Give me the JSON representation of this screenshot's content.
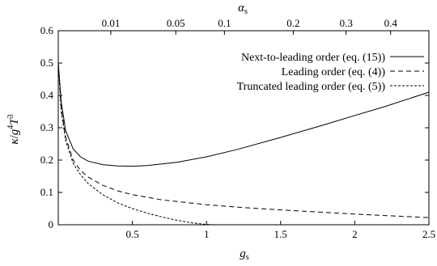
{
  "chart_data": {
    "type": "line",
    "xlabel": "g_s",
    "xlabel_main": "g",
    "xlabel_sub": "s",
    "ylabel": "κ/g⁴T³",
    "ylabel_parts": {
      "k": "κ",
      "slash": "/",
      "g": "g",
      "exp4": "4",
      "T": "T",
      "exp3": "3"
    },
    "top_axis_label": "α_s",
    "top_axis_main": "α",
    "top_axis_sub": "s",
    "xlim": [
      0,
      2.5
    ],
    "ylim": [
      0,
      0.6
    ],
    "x_ticks": [
      0.5,
      1,
      1.5,
      2,
      2.5
    ],
    "x_tick_labels": [
      "0.5",
      "1",
      "1.5",
      "2",
      "2.5"
    ],
    "y_ticks": [
      0,
      0.1,
      0.2,
      0.3,
      0.4,
      0.5,
      0.6
    ],
    "y_tick_labels": [
      "0",
      "0.1",
      "0.2",
      "0.3",
      "0.4",
      "0.5",
      "0.6"
    ],
    "top_ticks": [
      0.01,
      0.05,
      0.1,
      0.2,
      0.3,
      0.4
    ],
    "top_tick_labels": [
      "0.01",
      "0.05",
      "0.1",
      "0.2",
      "0.3",
      "0.4"
    ],
    "legend_position": "top-right",
    "series": [
      {
        "name": "Next-to-leading order (eq. (15))",
        "style": "solid",
        "x": [
          0.0,
          0.02,
          0.05,
          0.1,
          0.15,
          0.2,
          0.3,
          0.4,
          0.5,
          0.6,
          0.8,
          1.0,
          1.2,
          1.5,
          1.8,
          2.0,
          2.2,
          2.5
        ],
        "y": [
          0.5,
          0.38,
          0.29,
          0.235,
          0.21,
          0.197,
          0.186,
          0.182,
          0.181,
          0.183,
          0.193,
          0.21,
          0.232,
          0.27,
          0.31,
          0.338,
          0.365,
          0.41
        ]
      },
      {
        "name": "Leading order (eq. (4))",
        "style": "dashed",
        "x": [
          0.0,
          0.02,
          0.05,
          0.1,
          0.15,
          0.2,
          0.3,
          0.4,
          0.5,
          0.7,
          1.0,
          1.25,
          1.5,
          2.0,
          2.5
        ],
        "y": [
          0.5,
          0.36,
          0.27,
          0.2,
          0.168,
          0.148,
          0.122,
          0.105,
          0.093,
          0.077,
          0.062,
          0.053,
          0.046,
          0.033,
          0.022
        ]
      },
      {
        "name": "Truncated leading order (eq. (5))",
        "style": "dotted",
        "x": [
          0.0,
          0.02,
          0.05,
          0.1,
          0.15,
          0.2,
          0.3,
          0.4,
          0.5,
          0.6,
          0.7,
          0.8,
          0.9,
          1.0,
          1.05
        ],
        "y": [
          0.5,
          0.35,
          0.26,
          0.19,
          0.155,
          0.128,
          0.093,
          0.068,
          0.05,
          0.036,
          0.024,
          0.014,
          0.006,
          0.001,
          0.0
        ]
      }
    ]
  }
}
